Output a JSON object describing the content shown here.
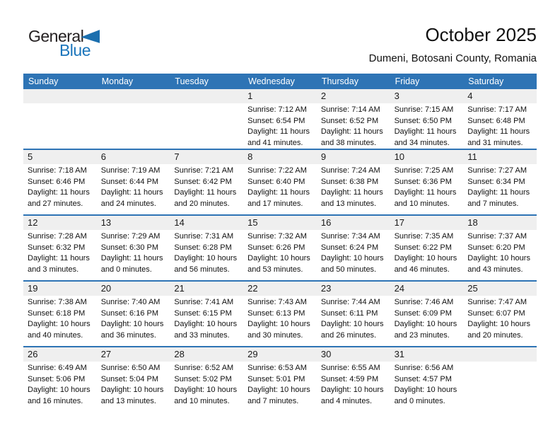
{
  "logo": {
    "line1": "General",
    "line2": "Blue"
  },
  "title": "October 2025",
  "subtitle": "Dumeni, Botosani County, Romania",
  "weekday_headers": [
    "Sunday",
    "Monday",
    "Tuesday",
    "Wednesday",
    "Thursday",
    "Friday",
    "Saturday"
  ],
  "labels": {
    "sunrise": "Sunrise:",
    "sunset": "Sunset:",
    "daylight": "Daylight:"
  },
  "colors": {
    "header_blue": "#2E74B5",
    "separator_blue": "#2E74B5",
    "strip_gray": "#EFEFEF",
    "logo_blue": "#1B75BB",
    "logo_dark": "#231F20"
  },
  "weeks": [
    [
      null,
      null,
      null,
      {
        "day": 1,
        "sunrise": "7:12 AM",
        "sunset": "6:54 PM",
        "daylight": "11 hours and 41 minutes."
      },
      {
        "day": 2,
        "sunrise": "7:14 AM",
        "sunset": "6:52 PM",
        "daylight": "11 hours and 38 minutes."
      },
      {
        "day": 3,
        "sunrise": "7:15 AM",
        "sunset": "6:50 PM",
        "daylight": "11 hours and 34 minutes."
      },
      {
        "day": 4,
        "sunrise": "7:17 AM",
        "sunset": "6:48 PM",
        "daylight": "11 hours and 31 minutes."
      }
    ],
    [
      {
        "day": 5,
        "sunrise": "7:18 AM",
        "sunset": "6:46 PM",
        "daylight": "11 hours and 27 minutes."
      },
      {
        "day": 6,
        "sunrise": "7:19 AM",
        "sunset": "6:44 PM",
        "daylight": "11 hours and 24 minutes."
      },
      {
        "day": 7,
        "sunrise": "7:21 AM",
        "sunset": "6:42 PM",
        "daylight": "11 hours and 20 minutes."
      },
      {
        "day": 8,
        "sunrise": "7:22 AM",
        "sunset": "6:40 PM",
        "daylight": "11 hours and 17 minutes."
      },
      {
        "day": 9,
        "sunrise": "7:24 AM",
        "sunset": "6:38 PM",
        "daylight": "11 hours and 13 minutes."
      },
      {
        "day": 10,
        "sunrise": "7:25 AM",
        "sunset": "6:36 PM",
        "daylight": "11 hours and 10 minutes."
      },
      {
        "day": 11,
        "sunrise": "7:27 AM",
        "sunset": "6:34 PM",
        "daylight": "11 hours and 7 minutes."
      }
    ],
    [
      {
        "day": 12,
        "sunrise": "7:28 AM",
        "sunset": "6:32 PM",
        "daylight": "11 hours and 3 minutes."
      },
      {
        "day": 13,
        "sunrise": "7:29 AM",
        "sunset": "6:30 PM",
        "daylight": "11 hours and 0 minutes."
      },
      {
        "day": 14,
        "sunrise": "7:31 AM",
        "sunset": "6:28 PM",
        "daylight": "10 hours and 56 minutes."
      },
      {
        "day": 15,
        "sunrise": "7:32 AM",
        "sunset": "6:26 PM",
        "daylight": "10 hours and 53 minutes."
      },
      {
        "day": 16,
        "sunrise": "7:34 AM",
        "sunset": "6:24 PM",
        "daylight": "10 hours and 50 minutes."
      },
      {
        "day": 17,
        "sunrise": "7:35 AM",
        "sunset": "6:22 PM",
        "daylight": "10 hours and 46 minutes."
      },
      {
        "day": 18,
        "sunrise": "7:37 AM",
        "sunset": "6:20 PM",
        "daylight": "10 hours and 43 minutes."
      }
    ],
    [
      {
        "day": 19,
        "sunrise": "7:38 AM",
        "sunset": "6:18 PM",
        "daylight": "10 hours and 40 minutes."
      },
      {
        "day": 20,
        "sunrise": "7:40 AM",
        "sunset": "6:16 PM",
        "daylight": "10 hours and 36 minutes."
      },
      {
        "day": 21,
        "sunrise": "7:41 AM",
        "sunset": "6:15 PM",
        "daylight": "10 hours and 33 minutes."
      },
      {
        "day": 22,
        "sunrise": "7:43 AM",
        "sunset": "6:13 PM",
        "daylight": "10 hours and 30 minutes."
      },
      {
        "day": 23,
        "sunrise": "7:44 AM",
        "sunset": "6:11 PM",
        "daylight": "10 hours and 26 minutes."
      },
      {
        "day": 24,
        "sunrise": "7:46 AM",
        "sunset": "6:09 PM",
        "daylight": "10 hours and 23 minutes."
      },
      {
        "day": 25,
        "sunrise": "7:47 AM",
        "sunset": "6:07 PM",
        "daylight": "10 hours and 20 minutes."
      }
    ],
    [
      {
        "day": 26,
        "sunrise": "6:49 AM",
        "sunset": "5:06 PM",
        "daylight": "10 hours and 16 minutes."
      },
      {
        "day": 27,
        "sunrise": "6:50 AM",
        "sunset": "5:04 PM",
        "daylight": "10 hours and 13 minutes."
      },
      {
        "day": 28,
        "sunrise": "6:52 AM",
        "sunset": "5:02 PM",
        "daylight": "10 hours and 10 minutes."
      },
      {
        "day": 29,
        "sunrise": "6:53 AM",
        "sunset": "5:01 PM",
        "daylight": "10 hours and 7 minutes."
      },
      {
        "day": 30,
        "sunrise": "6:55 AM",
        "sunset": "4:59 PM",
        "daylight": "10 hours and 4 minutes."
      },
      {
        "day": 31,
        "sunrise": "6:56 AM",
        "sunset": "4:57 PM",
        "daylight": "10 hours and 0 minutes."
      },
      null
    ]
  ]
}
